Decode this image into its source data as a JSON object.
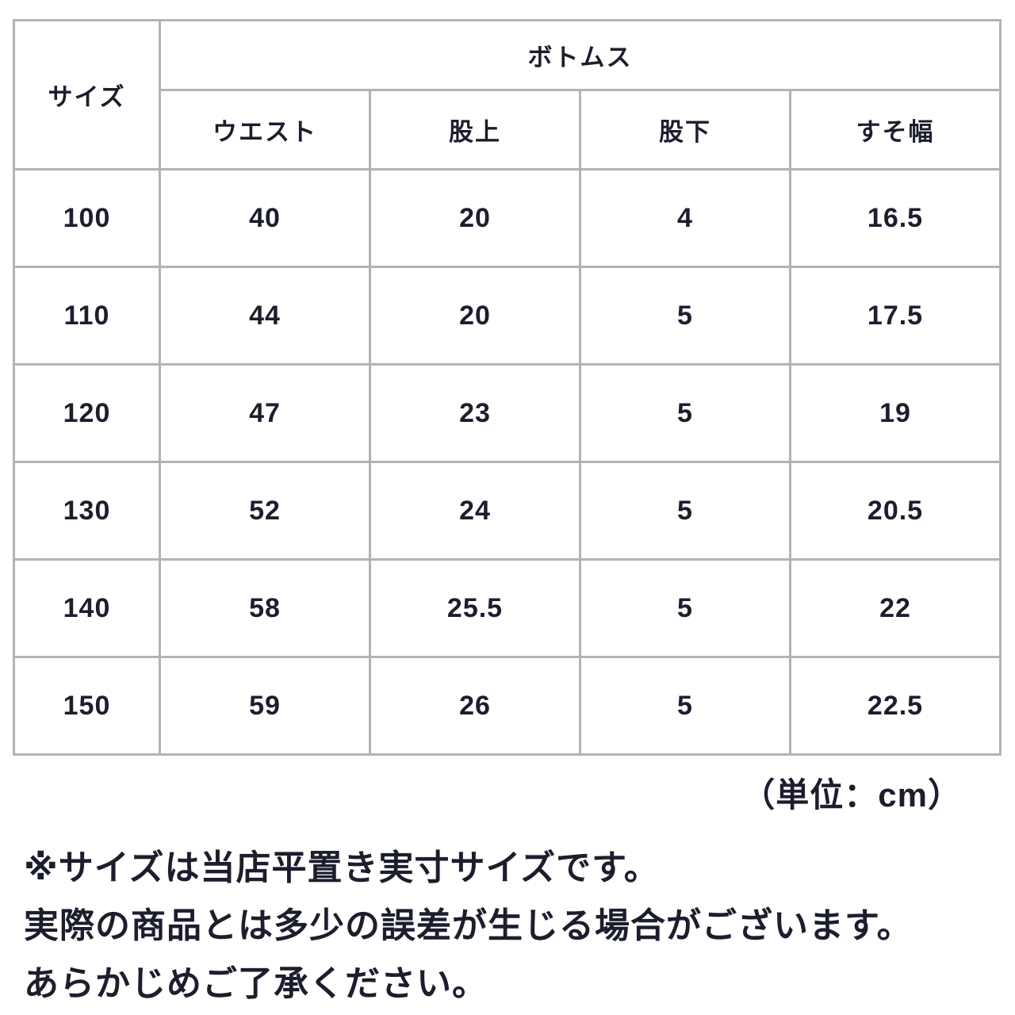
{
  "size_chart": {
    "size_label": "サイズ",
    "group_label": "ボトムス",
    "columns": [
      "ウエスト",
      "股上",
      "股下",
      "すそ幅"
    ],
    "rows": [
      {
        "size": "100",
        "values": [
          "40",
          "20",
          "4",
          "16.5"
        ]
      },
      {
        "size": "110",
        "values": [
          "44",
          "20",
          "5",
          "17.5"
        ]
      },
      {
        "size": "120",
        "values": [
          "47",
          "23",
          "5",
          "19"
        ]
      },
      {
        "size": "130",
        "values": [
          "52",
          "24",
          "5",
          "20.5"
        ]
      },
      {
        "size": "140",
        "values": [
          "58",
          "25.5",
          "5",
          "22"
        ]
      },
      {
        "size": "150",
        "values": [
          "59",
          "26",
          "5",
          "22.5"
        ]
      }
    ],
    "unit_note": "（単位：cm）",
    "notes": [
      "※サイズは当店平置き実寸サイズです。",
      "実際の商品とは多少の誤差が生じる場合がございます。",
      "あらかじめご了承ください。"
    ],
    "colors": {
      "border": "#b3b3b3",
      "text": "#1c1e2e",
      "background": "#ffffff"
    }
  }
}
